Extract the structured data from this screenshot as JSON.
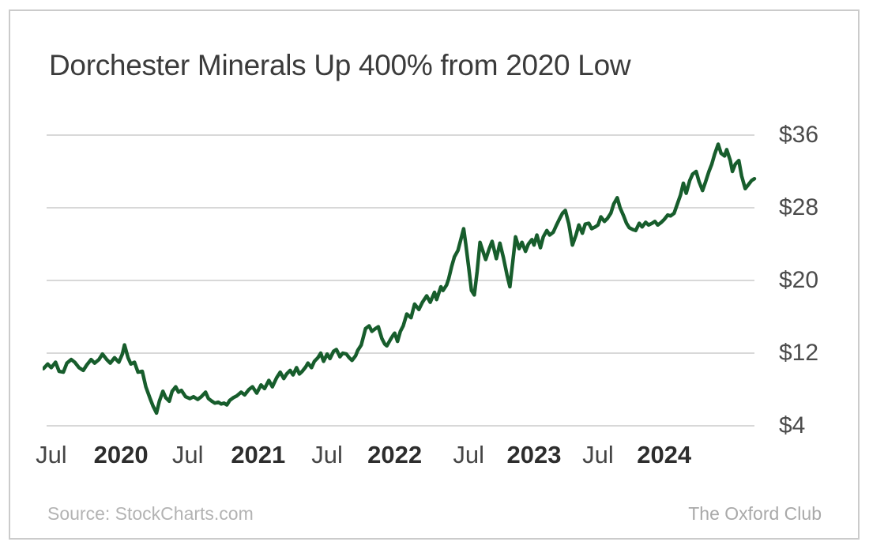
{
  "chart_data": {
    "type": "line",
    "title": "Dorchester Minerals Up 400% from 2020 Low",
    "x_unit": "fraction of horizontal time axis (0 = line start near Jul 2019 tick, 1 = line end right of 2024 tick)",
    "y_unit": "USD share price",
    "ylim": [
      4,
      36
    ],
    "grid": true,
    "legend": false,
    "x_axis": {
      "labels": [
        {
          "text": "Jul",
          "f": 0.011,
          "bold": false
        },
        {
          "text": "2020",
          "f": 0.109,
          "bold": true
        },
        {
          "text": "Jul",
          "f": 0.203,
          "bold": false
        },
        {
          "text": "2021",
          "f": 0.302,
          "bold": true
        },
        {
          "text": "Jul",
          "f": 0.399,
          "bold": false
        },
        {
          "text": "2022",
          "f": 0.494,
          "bold": true
        },
        {
          "text": "Jul",
          "f": 0.598,
          "bold": false
        },
        {
          "text": "2023",
          "f": 0.69,
          "bold": true
        },
        {
          "text": "Jul",
          "f": 0.78,
          "bold": false
        },
        {
          "text": "2024",
          "f": 0.873,
          "bold": true
        }
      ]
    },
    "y_axis": {
      "side": "right",
      "ticks": [
        {
          "label": "$36",
          "value": 36
        },
        {
          "label": "$28",
          "value": 28
        },
        {
          "label": "$20",
          "value": 20
        },
        {
          "label": "$12",
          "value": 12
        },
        {
          "label": "$4",
          "value": 4
        }
      ]
    },
    "series": [
      {
        "name": "Dorchester Minerals share price",
        "color": "#175d2c",
        "points": [
          [
            0.0,
            10.3
          ],
          [
            0.006,
            10.8
          ],
          [
            0.011,
            10.4
          ],
          [
            0.017,
            11.0
          ],
          [
            0.022,
            10.0
          ],
          [
            0.028,
            9.9
          ],
          [
            0.033,
            10.9
          ],
          [
            0.039,
            11.3
          ],
          [
            0.044,
            11.0
          ],
          [
            0.05,
            10.4
          ],
          [
            0.056,
            10.1
          ],
          [
            0.061,
            10.7
          ],
          [
            0.067,
            11.3
          ],
          [
            0.072,
            10.9
          ],
          [
            0.078,
            11.3
          ],
          [
            0.083,
            11.9
          ],
          [
            0.089,
            11.3
          ],
          [
            0.094,
            10.9
          ],
          [
            0.1,
            11.5
          ],
          [
            0.106,
            11.0
          ],
          [
            0.111,
            11.9
          ],
          [
            0.114,
            12.9
          ],
          [
            0.119,
            11.5
          ],
          [
            0.123,
            10.8
          ],
          [
            0.128,
            11.0
          ],
          [
            0.133,
            9.9
          ],
          [
            0.139,
            10.0
          ],
          [
            0.144,
            8.3
          ],
          [
            0.15,
            7.0
          ],
          [
            0.154,
            6.2
          ],
          [
            0.159,
            5.4
          ],
          [
            0.163,
            6.7
          ],
          [
            0.168,
            7.8
          ],
          [
            0.172,
            7.1
          ],
          [
            0.177,
            6.7
          ],
          [
            0.181,
            7.8
          ],
          [
            0.186,
            8.3
          ],
          [
            0.19,
            7.7
          ],
          [
            0.194,
            7.9
          ],
          [
            0.2,
            7.2
          ],
          [
            0.206,
            7.0
          ],
          [
            0.211,
            7.2
          ],
          [
            0.217,
            6.9
          ],
          [
            0.222,
            7.2
          ],
          [
            0.228,
            7.7
          ],
          [
            0.232,
            7.0
          ],
          [
            0.237,
            6.7
          ],
          [
            0.241,
            6.5
          ],
          [
            0.246,
            6.6
          ],
          [
            0.25,
            6.4
          ],
          [
            0.254,
            6.5
          ],
          [
            0.258,
            6.3
          ],
          [
            0.262,
            6.8
          ],
          [
            0.267,
            7.1
          ],
          [
            0.272,
            7.3
          ],
          [
            0.278,
            7.7
          ],
          [
            0.283,
            7.4
          ],
          [
            0.289,
            8.0
          ],
          [
            0.294,
            8.3
          ],
          [
            0.3,
            7.6
          ],
          [
            0.306,
            8.5
          ],
          [
            0.311,
            8.1
          ],
          [
            0.317,
            9.0
          ],
          [
            0.322,
            8.3
          ],
          [
            0.328,
            9.3
          ],
          [
            0.333,
            9.9
          ],
          [
            0.338,
            9.2
          ],
          [
            0.342,
            9.7
          ],
          [
            0.347,
            10.1
          ],
          [
            0.351,
            9.6
          ],
          [
            0.356,
            10.4
          ],
          [
            0.36,
            9.7
          ],
          [
            0.364,
            10.0
          ],
          [
            0.369,
            10.5
          ],
          [
            0.372,
            10.9
          ],
          [
            0.377,
            10.4
          ],
          [
            0.381,
            11.1
          ],
          [
            0.386,
            11.5
          ],
          [
            0.39,
            12.0
          ],
          [
            0.394,
            11.1
          ],
          [
            0.399,
            11.9
          ],
          [
            0.403,
            11.4
          ],
          [
            0.408,
            12.2
          ],
          [
            0.412,
            12.4
          ],
          [
            0.417,
            11.6
          ],
          [
            0.421,
            12.0
          ],
          [
            0.426,
            11.9
          ],
          [
            0.43,
            11.5
          ],
          [
            0.434,
            11.2
          ],
          [
            0.439,
            11.7
          ],
          [
            0.442,
            12.3
          ],
          [
            0.447,
            12.9
          ],
          [
            0.45,
            13.8
          ],
          [
            0.453,
            14.7
          ],
          [
            0.458,
            15.0
          ],
          [
            0.462,
            14.4
          ],
          [
            0.467,
            14.7
          ],
          [
            0.471,
            14.9
          ],
          [
            0.476,
            13.6
          ],
          [
            0.48,
            13.0
          ],
          [
            0.483,
            12.8
          ],
          [
            0.488,
            13.5
          ],
          [
            0.492,
            14.0
          ],
          [
            0.494,
            14.2
          ],
          [
            0.498,
            13.3
          ],
          [
            0.502,
            14.4
          ],
          [
            0.506,
            15.0
          ],
          [
            0.511,
            16.3
          ],
          [
            0.517,
            15.9
          ],
          [
            0.522,
            17.4
          ],
          [
            0.528,
            16.8
          ],
          [
            0.533,
            17.6
          ],
          [
            0.539,
            18.3
          ],
          [
            0.544,
            17.6
          ],
          [
            0.55,
            18.7
          ],
          [
            0.553,
            17.9
          ],
          [
            0.559,
            19.3
          ],
          [
            0.562,
            18.9
          ],
          [
            0.567,
            19.5
          ],
          [
            0.57,
            20.2
          ],
          [
            0.574,
            21.5
          ],
          [
            0.578,
            22.6
          ],
          [
            0.583,
            23.3
          ],
          [
            0.588,
            24.8
          ],
          [
            0.591,
            25.7
          ],
          [
            0.594,
            24.0
          ],
          [
            0.598,
            21.5
          ],
          [
            0.602,
            18.9
          ],
          [
            0.606,
            18.4
          ],
          [
            0.61,
            21.0
          ],
          [
            0.614,
            24.2
          ],
          [
            0.619,
            23.0
          ],
          [
            0.622,
            22.3
          ],
          [
            0.627,
            23.5
          ],
          [
            0.631,
            24.3
          ],
          [
            0.637,
            22.4
          ],
          [
            0.642,
            24.1
          ],
          [
            0.647,
            22.5
          ],
          [
            0.652,
            20.6
          ],
          [
            0.656,
            19.3
          ],
          [
            0.66,
            22.0
          ],
          [
            0.664,
            24.8
          ],
          [
            0.669,
            23.5
          ],
          [
            0.673,
            24.2
          ],
          [
            0.678,
            23.2
          ],
          [
            0.682,
            24.0
          ],
          [
            0.687,
            24.5
          ],
          [
            0.69,
            23.9
          ],
          [
            0.694,
            25.0
          ],
          [
            0.699,
            23.6
          ],
          [
            0.703,
            24.8
          ],
          [
            0.708,
            25.5
          ],
          [
            0.712,
            25.0
          ],
          [
            0.717,
            25.3
          ],
          [
            0.721,
            26.0
          ],
          [
            0.726,
            26.8
          ],
          [
            0.73,
            27.4
          ],
          [
            0.734,
            27.7
          ],
          [
            0.739,
            26.2
          ],
          [
            0.744,
            23.9
          ],
          [
            0.749,
            25.0
          ],
          [
            0.753,
            26.1
          ],
          [
            0.758,
            25.2
          ],
          [
            0.762,
            26.2
          ],
          [
            0.767,
            26.3
          ],
          [
            0.771,
            25.7
          ],
          [
            0.776,
            25.9
          ],
          [
            0.78,
            26.1
          ],
          [
            0.784,
            27.0
          ],
          [
            0.789,
            26.5
          ],
          [
            0.793,
            26.8
          ],
          [
            0.798,
            27.4
          ],
          [
            0.802,
            28.4
          ],
          [
            0.807,
            29.1
          ],
          [
            0.811,
            28.0
          ],
          [
            0.816,
            27.1
          ],
          [
            0.82,
            26.3
          ],
          [
            0.824,
            25.8
          ],
          [
            0.829,
            25.6
          ],
          [
            0.833,
            25.5
          ],
          [
            0.838,
            26.3
          ],
          [
            0.842,
            25.9
          ],
          [
            0.847,
            26.4
          ],
          [
            0.851,
            26.1
          ],
          [
            0.856,
            26.3
          ],
          [
            0.86,
            26.5
          ],
          [
            0.864,
            26.1
          ],
          [
            0.869,
            26.4
          ],
          [
            0.873,
            26.7
          ],
          [
            0.878,
            27.2
          ],
          [
            0.882,
            27.1
          ],
          [
            0.887,
            27.4
          ],
          [
            0.891,
            28.3
          ],
          [
            0.896,
            29.4
          ],
          [
            0.9,
            30.7
          ],
          [
            0.904,
            29.6
          ],
          [
            0.909,
            31.0
          ],
          [
            0.913,
            31.7
          ],
          [
            0.918,
            32.0
          ],
          [
            0.922,
            30.9
          ],
          [
            0.927,
            29.9
          ],
          [
            0.931,
            30.8
          ],
          [
            0.936,
            32.0
          ],
          [
            0.94,
            32.8
          ],
          [
            0.944,
            33.9
          ],
          [
            0.949,
            35.0
          ],
          [
            0.953,
            34.0
          ],
          [
            0.958,
            33.7
          ],
          [
            0.961,
            34.4
          ],
          [
            0.966,
            33.2
          ],
          [
            0.969,
            32.0
          ],
          [
            0.973,
            32.8
          ],
          [
            0.978,
            33.2
          ],
          [
            0.982,
            31.5
          ],
          [
            0.987,
            30.1
          ],
          [
            0.991,
            30.5
          ],
          [
            0.996,
            31.0
          ],
          [
            1.0,
            31.2
          ]
        ]
      }
    ]
  },
  "footer": {
    "source": "Source: StockCharts.com",
    "attribution": "The Oxford Club"
  },
  "colors": {
    "line": "#175d2c",
    "grid": "#d8d8d8",
    "frame_border": "#cbcbcb",
    "title_text": "#3b3b3b",
    "tick_text": "#4b4b4b",
    "year_tick_text": "#2d2d2d",
    "footer_text": "#b3b3b3"
  }
}
